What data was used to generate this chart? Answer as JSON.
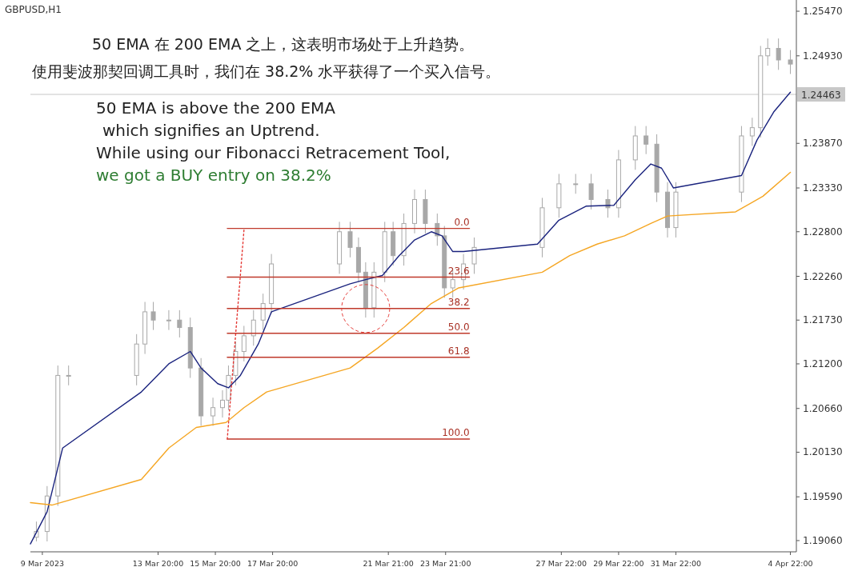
{
  "chart_data": {
    "type": "candlestick",
    "title": "GBPUSD,H1",
    "annotations": [
      "50 EMA 在 200 EMA 之上，这表明市场处于上升趋势。",
      "使用斐波那契回调工具时，我们在 38.2% 水平获得了一个买入信号。",
      "50 EMA is above the 200 EMA",
      "which signifies an Uptrend.",
      "While using our Fibonacci Retracement Tool,",
      "we got a BUY entry on 38.2%",
      {
        "text": "0.0",
        "x": "2023-03-24T17:00",
        "y": 1.2284
      },
      {
        "text": "23.6",
        "x": "2023-03-24T17:00",
        "y": 1.2225
      },
      {
        "text": "38.2",
        "x": "2023-03-24T17:00",
        "y": 1.2187
      },
      {
        "text": "50.0",
        "x": "2023-03-24T17:00",
        "y": 1.2157
      },
      {
        "text": "61.8",
        "x": "2023-03-24T17:00",
        "y": 1.2128
      },
      {
        "text": "100.0",
        "x": "2023-03-24T17:00",
        "y": 1.2029
      }
    ],
    "xlim": [
      "2023-03-09T09:00",
      "2023-04-05T03:00"
    ],
    "ylim": [
      1.18924,
      1.25606
    ],
    "xticks": [
      {
        "value": "2023-03-09T19:00",
        "label": "9 Mar 2023"
      },
      {
        "value": "2023-03-13T20:00",
        "label": "13 Mar 20:00"
      },
      {
        "value": "2023-03-15T20:00",
        "label": "15 Mar 20:00"
      },
      {
        "value": "2023-03-17T20:00",
        "label": "17 Mar 20:00"
      },
      {
        "value": "2023-03-21T21:00",
        "label": "21 Mar 21:00"
      },
      {
        "value": "2023-03-23T21:00",
        "label": "23 Mar 21:00"
      },
      {
        "value": "2023-03-27T22:00",
        "label": "27 Mar 22:00"
      },
      {
        "value": "2023-03-29T22:00",
        "label": "29 Mar 22:00"
      },
      {
        "value": "2023-03-31T22:00",
        "label": "31 Mar 22:00"
      },
      {
        "value": "2023-04-04T22:00",
        "label": "4 Apr 22:00"
      }
    ],
    "yticks": [
      {
        "value": 1.2547,
        "label": "1.25470"
      },
      {
        "value": 1.2493,
        "label": "1.24930"
      },
      {
        "value": 1.2387,
        "label": "1.23870"
      },
      {
        "value": 1.2333,
        "label": "1.23330"
      },
      {
        "value": 1.228,
        "label": "1.22800"
      },
      {
        "value": 1.2226,
        "label": "1.22260"
      },
      {
        "value": 1.2173,
        "label": "1.21730"
      },
      {
        "value": 1.212,
        "label": "1.21200"
      },
      {
        "value": 1.2066,
        "label": "1.20660"
      },
      {
        "value": 1.2013,
        "label": "1.20130"
      },
      {
        "value": 1.1959,
        "label": "1.19590"
      },
      {
        "value": 1.1906,
        "label": "1.19060"
      }
    ],
    "ref_lines": [
      {
        "axis": "y",
        "value": 1.24463,
        "label": "1.24463",
        "color": "#c8c8c8"
      }
    ],
    "series": [
      {
        "color": "#a8a8a8",
        "x": [
          "2023-03-09T14:00",
          "2023-03-09T23:00",
          "2023-03-10T08:00",
          "2023-03-10T17:00",
          "2023-03-13T02:00",
          "2023-03-13T09:00",
          "2023-03-13T16:00",
          "2023-03-14T05:00",
          "2023-03-14T14:00",
          "2023-03-14T23:00",
          "2023-03-15T08:00",
          "2023-03-15T18:00",
          "2023-03-16T02:00",
          "2023-03-16T07:00",
          "2023-03-16T13:00",
          "2023-03-16T20:00",
          "2023-03-17T04:00",
          "2023-03-17T12:00",
          "2023-03-17T19:00",
          "2023-03-20T04:00",
          "2023-03-20T13:00",
          "2023-03-20T20:00",
          "2023-03-21T02:00",
          "2023-03-21T09:00",
          "2023-03-21T18:00",
          "2023-03-22T01:00",
          "2023-03-22T10:00",
          "2023-03-22T19:00",
          "2023-03-23T04:00",
          "2023-03-23T14:00",
          "2023-03-23T20:00",
          "2023-03-24T03:00",
          "2023-03-24T12:00",
          "2023-03-24T21:00",
          "2023-03-27T06:00",
          "2023-03-27T20:00",
          "2023-03-28T10:00",
          "2023-03-28T23:00",
          "2023-03-29T13:00",
          "2023-03-29T22:00",
          "2023-03-30T12:00",
          "2023-03-30T21:00",
          "2023-03-31T06:00",
          "2023-03-31T15:00",
          "2023-03-31T22:00",
          "2023-04-03T05:00",
          "2023-04-03T14:00",
          "2023-04-03T21:00",
          "2023-04-04T03:00",
          "2023-04-04T12:00",
          "2023-04-04T22:00"
        ],
        "ohlc": [
          [
            1.191,
            1.1929,
            1.1905,
            1.1917
          ],
          [
            1.1917,
            1.1972,
            1.1905,
            1.196
          ],
          [
            1.196,
            1.2118,
            1.1948,
            1.2106
          ],
          [
            1.2106,
            1.2118,
            1.2094,
            1.2106
          ],
          [
            1.2106,
            1.2156,
            1.2094,
            1.2144
          ],
          [
            1.2144,
            1.2195,
            1.2132,
            1.2183
          ],
          [
            1.2183,
            1.2195,
            1.2161,
            1.2173
          ],
          [
            1.2173,
            1.2185,
            1.2161,
            1.2173
          ],
          [
            1.2173,
            1.2185,
            1.2152,
            1.2164
          ],
          [
            1.2164,
            1.2176,
            1.2103,
            1.2115
          ],
          [
            1.2115,
            1.2127,
            1.2045,
            1.2057
          ],
          [
            1.2057,
            1.2079,
            1.2045,
            1.2067
          ],
          [
            1.2067,
            1.2088,
            1.2055,
            1.2076
          ],
          [
            1.2076,
            1.2118,
            1.2064,
            1.2106
          ],
          [
            1.2106,
            1.2147,
            1.2094,
            1.2135
          ],
          [
            1.2135,
            1.2166,
            1.2123,
            1.2154
          ],
          [
            1.2154,
            1.2185,
            1.2142,
            1.2173
          ],
          [
            1.2173,
            1.2205,
            1.2161,
            1.2193
          ],
          [
            1.2193,
            1.2253,
            1.2181,
            1.2241
          ],
          [
            1.2241,
            1.2292,
            1.2229,
            1.228
          ],
          [
            1.228,
            1.2292,
            1.2249,
            1.2261
          ],
          [
            1.2261,
            1.2273,
            1.2219,
            1.2231
          ],
          [
            1.2231,
            1.2243,
            1.2176,
            1.2188
          ],
          [
            1.2188,
            1.2243,
            1.2176,
            1.2231
          ],
          [
            1.2231,
            1.2292,
            1.2219,
            1.228
          ],
          [
            1.228,
            1.2292,
            1.2239,
            1.2251
          ],
          [
            1.2251,
            1.2302,
            1.2239,
            1.229
          ],
          [
            1.229,
            1.2331,
            1.2278,
            1.2319
          ],
          [
            1.2319,
            1.2331,
            1.2278,
            1.229
          ],
          [
            1.229,
            1.2302,
            1.2263,
            1.2275
          ],
          [
            1.2275,
            1.2287,
            1.22,
            1.2212
          ],
          [
            1.2212,
            1.2234,
            1.22,
            1.2222
          ],
          [
            1.2222,
            1.2253,
            1.221,
            1.2241
          ],
          [
            1.2241,
            1.2273,
            1.2229,
            1.2261
          ],
          [
            1.2261,
            1.2321,
            1.2249,
            1.2309
          ],
          [
            1.2309,
            1.235,
            1.2297,
            1.2338
          ],
          [
            1.2338,
            1.235,
            1.2326,
            1.2338
          ],
          [
            1.2338,
            1.235,
            1.2307,
            1.2319
          ],
          [
            1.2319,
            1.2331,
            1.2297,
            1.2309
          ],
          [
            1.2309,
            1.2379,
            1.2297,
            1.2367
          ],
          [
            1.2367,
            1.2408,
            1.2355,
            1.2396
          ],
          [
            1.2396,
            1.2408,
            1.2374,
            1.2386
          ],
          [
            1.2386,
            1.2398,
            1.2316,
            1.2328
          ],
          [
            1.2328,
            1.234,
            1.2273,
            1.2285
          ],
          [
            1.2285,
            1.234,
            1.2273,
            1.2328
          ],
          [
            1.2328,
            1.2408,
            1.2316,
            1.2396
          ],
          [
            1.2396,
            1.2418,
            1.2384,
            1.2406
          ],
          [
            1.2406,
            1.2505,
            1.2394,
            1.2493
          ],
          [
            1.2493,
            1.2514,
            1.2481,
            1.2502
          ],
          [
            1.2502,
            1.2514,
            1.2476,
            1.2488
          ],
          [
            1.2488,
            1.25,
            1.2471,
            1.2483
          ]
        ]
      },
      {
        "type": "line",
        "color": "#1a237e",
        "x": [
          "2023-03-09T09:00",
          "2023-03-09T23:00",
          "2023-03-10T12:00",
          "2023-03-13T06:00",
          "2023-03-14T05:00",
          "2023-03-14T23:00",
          "2023-03-15T08:00",
          "2023-03-15T22:00",
          "2023-03-16T07:00",
          "2023-03-16T17:00",
          "2023-03-17T08:00",
          "2023-03-17T19:00",
          "2023-03-20T13:00",
          "2023-03-21T02:00",
          "2023-03-21T16:00",
          "2023-03-22T06:00",
          "2023-03-22T19:00",
          "2023-03-23T09:00",
          "2023-03-23T18:00",
          "2023-03-24T03:00",
          "2023-03-24T12:00",
          "2023-03-27T02:00",
          "2023-03-27T20:00",
          "2023-03-28T19:00",
          "2023-03-29T18:00",
          "2023-03-30T12:00",
          "2023-03-31T01:00",
          "2023-03-31T10:00",
          "2023-03-31T20:00",
          "2023-04-03T05:00",
          "2023-04-03T18:00",
          "2023-04-04T08:00",
          "2023-04-04T22:00"
        ],
        "values": [
          1.1902,
          1.1941,
          1.2018,
          1.2086,
          1.212,
          1.2135,
          1.2115,
          1.2096,
          1.2091,
          1.2106,
          1.2144,
          1.2183,
          1.2217,
          1.2222,
          1.2227,
          1.2251,
          1.227,
          1.228,
          1.2275,
          1.2256,
          1.2256,
          1.2265,
          1.2294,
          1.2311,
          1.2312,
          1.2343,
          1.2362,
          1.2357,
          1.2333,
          1.2348,
          1.2391,
          1.2425,
          1.2449
        ]
      },
      {
        "type": "line",
        "color": "#f5a623",
        "x": [
          "2023-03-09T09:00",
          "2023-03-10T03:00",
          "2023-03-13T06:00",
          "2023-03-14T05:00",
          "2023-03-15T04:00",
          "2023-03-16T05:00",
          "2023-03-16T20:00",
          "2023-03-17T15:00",
          "2023-03-20T13:00",
          "2023-03-21T12:00",
          "2023-03-22T10:00",
          "2023-03-23T09:00",
          "2023-03-24T08:00",
          "2023-03-27T06:00",
          "2023-03-28T05:00",
          "2023-03-29T04:00",
          "2023-03-30T03:00",
          "2023-03-31T01:00",
          "2023-03-31T15:00",
          "2023-04-03T00:00",
          "2023-04-03T23:00",
          "2023-04-04T22:00"
        ],
        "values": [
          1.1952,
          1.1949,
          1.198,
          1.2018,
          1.2043,
          1.2049,
          1.2067,
          1.2086,
          1.2115,
          1.2139,
          1.2164,
          1.2193,
          1.2212,
          1.2231,
          1.2251,
          1.2265,
          1.2275,
          1.229,
          1.2299,
          1.2304,
          1.2323,
          1.2352
        ]
      },
      {
        "type": "line",
        "color": "#c0392b",
        "x": [
          "2023-03-16T06:00",
          "2023-03-24T17:00"
        ],
        "values": [
          1.2284,
          1.2284
        ]
      },
      {
        "type": "line",
        "color": "#c0392b",
        "x": [
          "2023-03-16T06:00",
          "2023-03-24T17:00"
        ],
        "values": [
          1.2225,
          1.2225
        ]
      },
      {
        "type": "line",
        "color": "#c0392b",
        "x": [
          "2023-03-16T06:00",
          "2023-03-24T17:00"
        ],
        "values": [
          1.2187,
          1.2187
        ]
      },
      {
        "type": "line",
        "color": "#c0392b",
        "x": [
          "2023-03-16T06:00",
          "2023-03-24T17:00"
        ],
        "values": [
          1.2157,
          1.2157
        ]
      },
      {
        "type": "line",
        "color": "#c0392b",
        "x": [
          "2023-03-16T06:00",
          "2023-03-24T17:00"
        ],
        "values": [
          1.2128,
          1.2128
        ]
      },
      {
        "type": "line",
        "color": "#c0392b",
        "x": [
          "2023-03-16T06:00",
          "2023-03-24T17:00"
        ],
        "values": [
          1.2029,
          1.2029
        ]
      },
      {
        "type": "line",
        "color": "#e53935",
        "line_style": "dotted",
        "x": [
          "2023-03-16T06:00",
          "2023-03-16T20:00"
        ],
        "values": [
          1.2029,
          1.2282
        ]
      }
    ]
  }
}
